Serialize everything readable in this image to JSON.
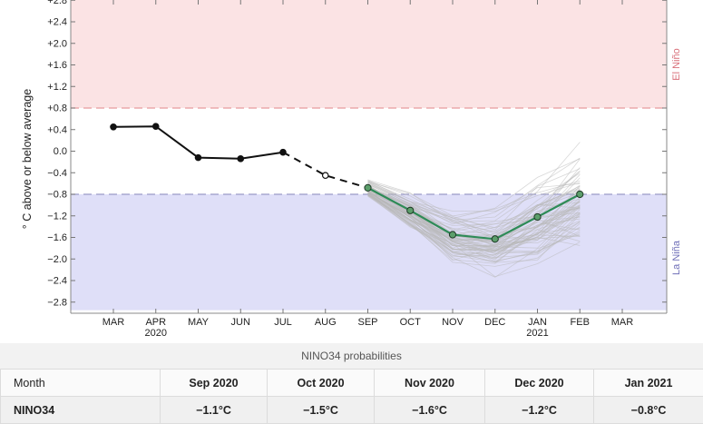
{
  "chart_data": {
    "type": "line",
    "ylabel": "° C above or below average",
    "ylim": [
      -2.95,
      2.9
    ],
    "yticks": [
      "+2.8",
      "+2.4",
      "+2.0",
      "+1.6",
      "+1.2",
      "+0.8",
      "+0.4",
      "0.0",
      "−0.4",
      "−0.8",
      "−1.2",
      "−1.6",
      "−2.0",
      "−2.4",
      "−2.8"
    ],
    "ytick_values": [
      2.8,
      2.4,
      2.0,
      1.6,
      1.2,
      0.8,
      0.4,
      0.0,
      -0.4,
      -0.8,
      -1.2,
      -1.6,
      -2.0,
      -2.4,
      -2.8
    ],
    "x_ticks": [
      {
        "label": "MAR",
        "year": ""
      },
      {
        "label": "APR",
        "year": "2020"
      },
      {
        "label": "MAY",
        "year": ""
      },
      {
        "label": "JUN",
        "year": ""
      },
      {
        "label": "JUL",
        "year": ""
      },
      {
        "label": "AUG",
        "year": ""
      },
      {
        "label": "SEP",
        "year": ""
      },
      {
        "label": "OCT",
        "year": ""
      },
      {
        "label": "NOV",
        "year": ""
      },
      {
        "label": "DEC",
        "year": ""
      },
      {
        "label": "JAN",
        "year": "2021"
      },
      {
        "label": "FEB",
        "year": ""
      },
      {
        "label": "MAR",
        "year": ""
      }
    ],
    "thresholds": {
      "el_nino": 0.8,
      "la_nina": -0.8
    },
    "zone_labels": {
      "el_nino": "El Niño",
      "la_nina": "La Niña"
    },
    "colors": {
      "el_nino_zone": "#fbe3e4",
      "la_nina_zone": "#dfdff8",
      "el_nino_line": "#e89a9e",
      "la_nina_line": "#9a9ac8",
      "observed": "#111111",
      "forecast": "#2e8b57",
      "forecast_marker": "#5c9e6b",
      "ensemble": "#b8b8b8"
    },
    "observed": {
      "x": [
        0,
        1,
        2,
        3,
        4
      ],
      "y": [
        0.45,
        0.46,
        -0.12,
        -0.14,
        -0.02
      ]
    },
    "interpolated": {
      "x": [
        4,
        5,
        6
      ],
      "y": [
        -0.02,
        -0.45,
        -0.68
      ]
    },
    "forecast": {
      "x": [
        6,
        7,
        8,
        9,
        10,
        11
      ],
      "y": [
        -0.68,
        -1.1,
        -1.55,
        -1.63,
        -1.22,
        -0.8
      ]
    }
  },
  "probabilities": {
    "title": "NINO34 probabilities",
    "header_label": "Month",
    "months": [
      "Sep 2020",
      "Oct 2020",
      "Nov 2020",
      "Dec 2020",
      "Jan 2021"
    ],
    "row_label": "NINO34",
    "values": [
      "−1.1°C",
      "−1.5°C",
      "−1.6°C",
      "−1.2°C",
      "−0.8°C"
    ]
  }
}
